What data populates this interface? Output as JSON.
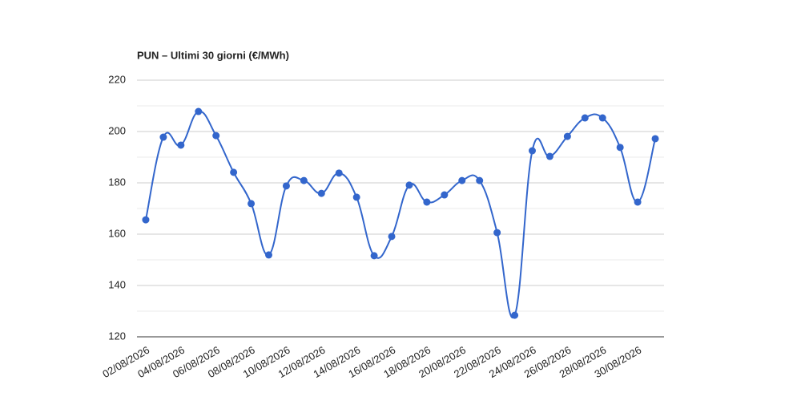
{
  "chart_data": {
    "type": "line",
    "title": "PUN – Ultimi 30 giorni (€/MWh)",
    "categories": [
      "02/08/2026",
      null,
      "04/08/2026",
      null,
      "06/08/2026",
      null,
      "08/08/2026",
      null,
      "10/08/2026",
      null,
      "12/08/2026",
      null,
      "14/08/2026",
      null,
      "16/08/2026",
      null,
      "18/08/2026",
      null,
      "20/08/2026",
      null,
      "22/08/2026",
      null,
      "24/08/2026",
      null,
      "26/08/2026",
      null,
      "28/08/2026",
      null,
      "30/08/2026",
      null
    ],
    "series": [
      {
        "color": "#3366cc",
        "values": [
          165.6,
          197.8,
          194.7,
          207.8,
          198.4,
          184.1,
          171.9,
          151.9,
          178.8,
          180.9,
          175.9,
          183.8,
          174.4,
          151.6,
          159.1,
          179.1,
          172.5,
          175.3,
          180.9,
          180.9,
          160.6,
          128.4,
          192.5,
          190.3,
          198.1,
          205.3,
          205.3,
          193.8,
          172.5,
          197.2
        ]
      }
    ],
    "ylim": [
      120,
      220
    ],
    "yticks": [
      120,
      140,
      160,
      180,
      200,
      220
    ],
    "minor_yticks": [
      130,
      150,
      170,
      190,
      210
    ],
    "grid": true,
    "smooth": true
  }
}
